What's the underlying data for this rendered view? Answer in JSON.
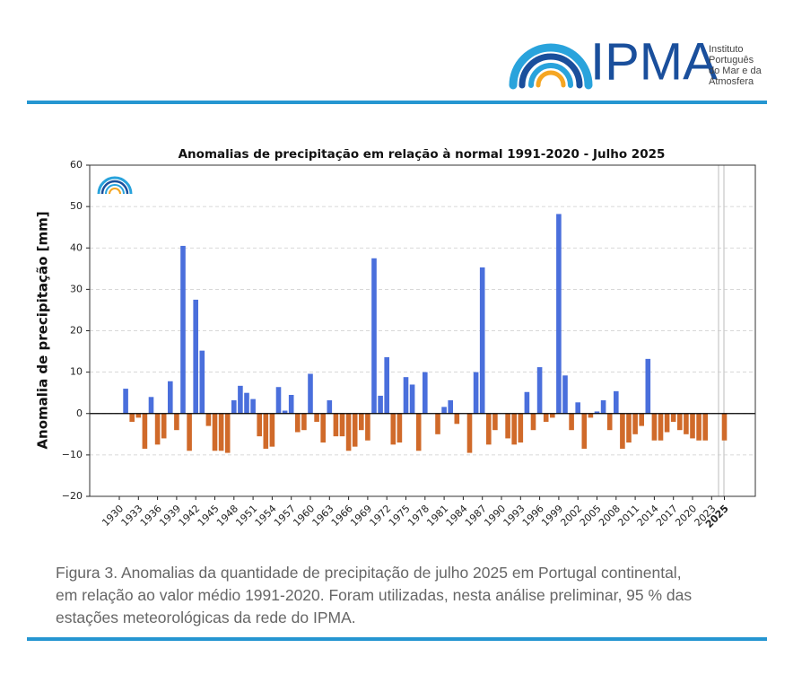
{
  "header": {
    "logo_text": "IPMA",
    "logo_subtitle": [
      "Instituto",
      "Português",
      "do Mar e da",
      "Atmosfera"
    ]
  },
  "chart_data": {
    "type": "bar",
    "title": "Anomalias de precipitação em relação à normal 1991-2020 - Julho 2025",
    "y_label": "Anomalia de precipitação [mm]",
    "categories": [
      "1930",
      null,
      null,
      "1933",
      null,
      null,
      "1936",
      null,
      null,
      "1939",
      null,
      null,
      "1942",
      null,
      null,
      "1945",
      null,
      null,
      "1948",
      null,
      null,
      "1951",
      null,
      null,
      "1954",
      null,
      null,
      "1957",
      null,
      null,
      "1960",
      null,
      null,
      "1963",
      null,
      null,
      "1966",
      null,
      null,
      "1969",
      null,
      null,
      "1972",
      null,
      null,
      "1975",
      null,
      null,
      "1978",
      null,
      null,
      "1981",
      null,
      null,
      "1984",
      null,
      null,
      "1987",
      null,
      null,
      "1990",
      null,
      null,
      "1993",
      null,
      null,
      "1996",
      null,
      null,
      "1999",
      null,
      null,
      "2002",
      null,
      null,
      "2005",
      null,
      null,
      "2008",
      null,
      null,
      "2011",
      null,
      null,
      "2014",
      null,
      null,
      "2017",
      null,
      null,
      "2020",
      null,
      null,
      "2023",
      null,
      "2025"
    ],
    "values": [
      null,
      6.0,
      -2,
      -1,
      -8.5,
      4,
      -7.5,
      -6,
      7.8,
      -4,
      40.5,
      -9,
      27.5,
      15.2,
      -3,
      -9,
      -9,
      -9.5,
      3.2,
      6.7,
      5,
      3.5,
      -5.5,
      -8.5,
      -8,
      6.4,
      0.7,
      4.5,
      -4.5,
      -4,
      9.6,
      -2,
      -7,
      3.2,
      -5.5,
      -5.5,
      -9,
      -8,
      -4,
      -6.5,
      37.5,
      4.3,
      13.6,
      -7.5,
      -7,
      8.8,
      7,
      -9,
      10,
      null,
      -5,
      1.6,
      3.2,
      -2.5,
      null,
      -9.5,
      10,
      35.3,
      -7.5,
      -4,
      null,
      -6,
      -7.5,
      -7,
      5.2,
      -4,
      11.2,
      -2,
      -1,
      48.2,
      9.2,
      -4,
      2.7,
      -8.5,
      -1,
      0.5,
      3.2,
      -4,
      5.4,
      -8.5,
      -7,
      -5,
      -3,
      13.2,
      -6.5,
      -6.5,
      -4.5,
      -2,
      -4,
      -5,
      -6,
      -6.5,
      -6.5,
      null,
      null,
      -6.5
    ],
    "positive_color": "#4a6fdc",
    "negative_color": "#d06a2a",
    "ylim": [
      -20,
      60
    ],
    "yticks": [
      {
        "value": -20,
        "label": "−20"
      },
      {
        "value": -10,
        "label": "−10"
      },
      0,
      10,
      20,
      30,
      40,
      50,
      60
    ],
    "grid": true
  },
  "caption": [
    "Figura 3. Anomalias da quantidade de precipitação de julho 2025 em Portugal continental,",
    "em relação ao valor médio 1991-2020. Foram utilizadas, nesta análise preliminar, 95 % das",
    "estações meteorológicas da rede do IPMA."
  ]
}
